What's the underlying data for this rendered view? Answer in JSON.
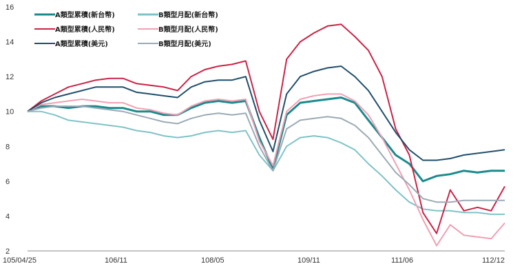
{
  "chart_data": {
    "type": "line",
    "title": "",
    "xlabel": "",
    "ylabel": "",
    "ylim": [
      2,
      16
    ],
    "yticks": [
      2,
      4,
      6,
      8,
      10,
      12,
      14,
      16
    ],
    "xlim": [
      "105/04/25",
      "112/12"
    ],
    "xtick_labels": [
      "105/04/25",
      "106/11",
      "108/05",
      "109/11",
      "111/06",
      "112/12"
    ],
    "x": [
      "105/04/25",
      "105/06",
      "105/09",
      "105/12",
      "106/03",
      "106/06",
      "106/09",
      "106/11",
      "107/03",
      "107/06",
      "107/09",
      "107/12",
      "108/03",
      "108/05",
      "108/08",
      "108/11",
      "109/02",
      "109/03",
      "109/03",
      "109/05",
      "109/08",
      "109/11",
      "110/02",
      "110/05",
      "110/08",
      "110/10",
      "110/12",
      "111/02",
      "111/04",
      "111/06",
      "111/09",
      "111/12",
      "112/03",
      "112/06",
      "112/09",
      "112/12"
    ],
    "grid": false,
    "legend_position": "top-left",
    "series": [
      {
        "name": "A類型累積(新台幣)",
        "color": "#1a8a8c",
        "width": 3,
        "values": [
          10.0,
          10.3,
          10.3,
          10.2,
          10.3,
          10.3,
          10.2,
          10.2,
          10.0,
          10.0,
          9.8,
          9.8,
          10.2,
          10.5,
          10.6,
          10.5,
          10.6,
          8.5,
          6.7,
          9.8,
          10.5,
          10.6,
          10.7,
          10.8,
          10.5,
          9.5,
          8.5,
          7.5,
          7.0,
          6.0,
          6.3,
          6.4,
          6.6,
          6.5,
          6.6,
          6.6
        ]
      },
      {
        "name": "B類型月配(新台幣)",
        "color": "#7fc2c7",
        "width": 2,
        "values": [
          10.0,
          10.0,
          9.8,
          9.5,
          9.4,
          9.3,
          9.2,
          9.1,
          8.9,
          8.8,
          8.6,
          8.5,
          8.6,
          8.8,
          8.9,
          8.8,
          8.9,
          7.5,
          6.6,
          8.0,
          8.5,
          8.6,
          8.5,
          8.2,
          7.8,
          7.0,
          6.3,
          5.5,
          4.8,
          4.4,
          4.3,
          4.3,
          4.2,
          4.2,
          4.1,
          4.1
        ]
      },
      {
        "name": "A類型累積(人民幣)",
        "color": "#cc2244",
        "width": 2,
        "values": [
          10.0,
          10.6,
          11.0,
          11.4,
          11.6,
          11.8,
          11.9,
          11.9,
          11.6,
          11.5,
          11.4,
          11.2,
          12.0,
          12.4,
          12.6,
          12.7,
          12.9,
          10.0,
          8.4,
          13.0,
          14.0,
          14.5,
          14.9,
          15.0,
          14.3,
          13.5,
          12.0,
          9.0,
          7.5,
          4.2,
          3.0,
          5.5,
          4.3,
          4.5,
          4.3,
          5.7
        ]
      },
      {
        "name": "B類型月配(人民幣)",
        "color": "#f0a0b2",
        "width": 2,
        "values": [
          10.0,
          10.4,
          10.5,
          10.6,
          10.7,
          10.6,
          10.5,
          10.5,
          10.2,
          10.1,
          9.9,
          9.8,
          10.3,
          10.6,
          10.7,
          10.6,
          10.7,
          8.3,
          6.9,
          10.0,
          10.7,
          10.9,
          11.0,
          11.0,
          10.6,
          9.8,
          8.5,
          7.0,
          5.5,
          3.8,
          2.3,
          3.5,
          2.9,
          2.8,
          2.7,
          3.6
        ]
      },
      {
        "name": "A類型累積(美元)",
        "color": "#1f4e6b",
        "width": 2,
        "values": [
          10.0,
          10.5,
          10.8,
          11.0,
          11.2,
          11.4,
          11.4,
          11.4,
          11.1,
          11.0,
          10.9,
          10.8,
          11.4,
          11.7,
          11.8,
          11.8,
          12.0,
          9.5,
          7.7,
          11.0,
          12.0,
          12.3,
          12.5,
          12.6,
          12.0,
          11.2,
          10.0,
          8.8,
          7.8,
          7.2,
          7.2,
          7.3,
          7.5,
          7.6,
          7.7,
          7.8
        ]
      },
      {
        "name": "B類型月配(美元)",
        "color": "#9aaab6",
        "width": 2,
        "values": [
          10.0,
          10.2,
          10.3,
          10.3,
          10.3,
          10.2,
          10.1,
          10.0,
          9.8,
          9.6,
          9.4,
          9.3,
          9.6,
          9.8,
          9.9,
          9.8,
          9.9,
          8.0,
          6.6,
          9.0,
          9.5,
          9.6,
          9.7,
          9.6,
          9.2,
          8.5,
          7.5,
          6.5,
          5.8,
          5.0,
          4.8,
          4.8,
          4.9,
          4.9,
          4.9,
          4.9
        ]
      }
    ]
  },
  "legend": {
    "a_twd": "A類型累積(新台幣)",
    "b_twd": "B類型月配(新台幣)",
    "a_cny": "A類型累積(人民幣)",
    "b_cny": "B類型月配(人民幣)",
    "a_usd": "A類型累積(美元)",
    "b_usd": "B類型月配(美元)"
  }
}
